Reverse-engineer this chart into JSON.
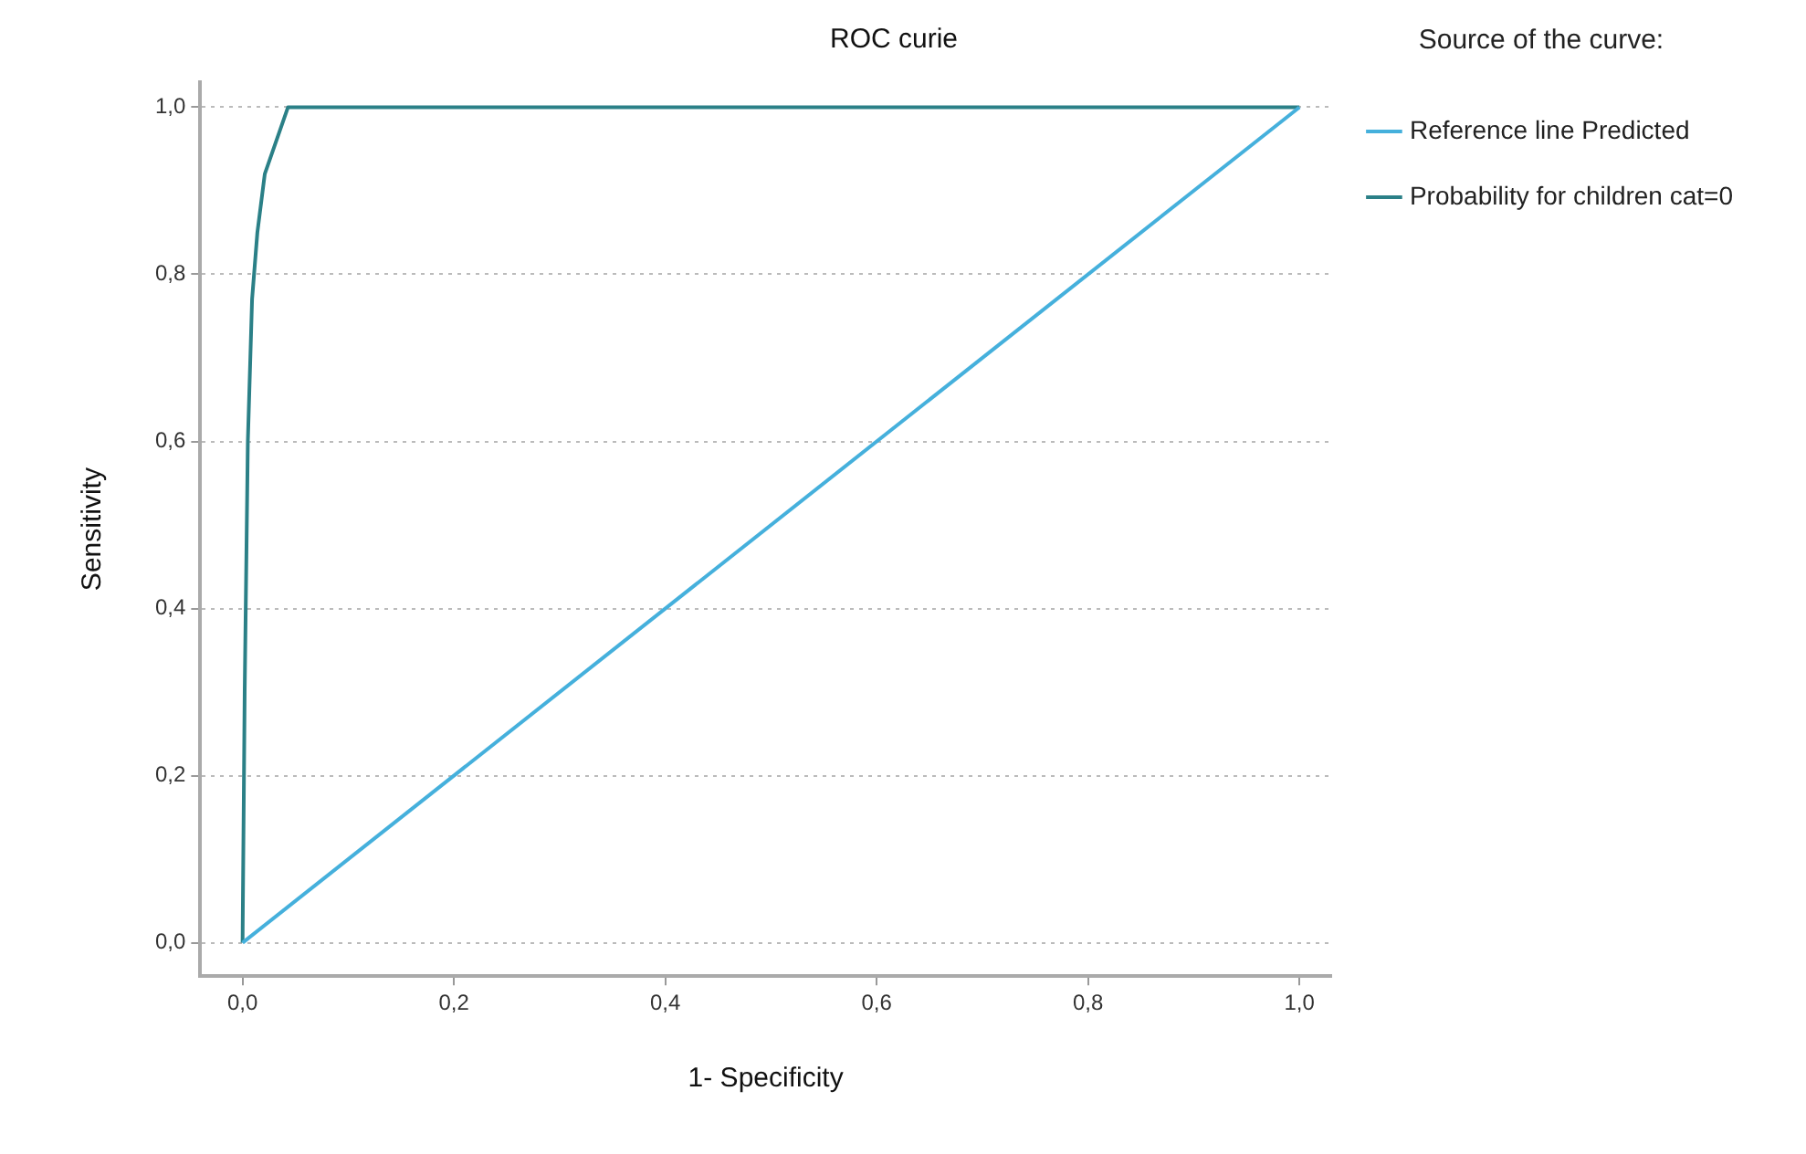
{
  "chart_data": {
    "type": "line",
    "title": "ROC curie",
    "xlabel": "1- Specificity",
    "ylabel": "Sensitivity",
    "legend_title": "Source of the curve:",
    "xlim": [
      -0.04,
      1.03
    ],
    "ylim": [
      -0.04,
      1.03
    ],
    "xticks": [
      {
        "value": 0,
        "label": "0,0"
      },
      {
        "value": 0.2,
        "label": "0,2"
      },
      {
        "value": 0.4,
        "label": "0,4"
      },
      {
        "value": 0.6,
        "label": "0,6"
      },
      {
        "value": 0.8,
        "label": "0,8"
      },
      {
        "value": 1,
        "label": "1,0"
      }
    ],
    "yticks": [
      {
        "value": 0,
        "label": "0,0"
      },
      {
        "value": 0.2,
        "label": "0,2"
      },
      {
        "value": 0.4,
        "label": "0,4"
      },
      {
        "value": 0.6,
        "label": "0,6"
      },
      {
        "value": 0.8,
        "label": "0,8"
      },
      {
        "value": 1,
        "label": "1,0"
      }
    ],
    "series": [
      {
        "name": "Reference line Predicted",
        "color": "#45b0dc",
        "x": [
          0,
          1
        ],
        "values": [
          0,
          1
        ]
      },
      {
        "name": "Probability for children cat=0",
        "color": "#2b8087",
        "x": [
          0,
          0.002,
          0.005,
          0.009,
          0.014,
          0.021,
          0.043,
          1
        ],
        "values": [
          0,
          0.3,
          0.6,
          0.77,
          0.85,
          0.92,
          1,
          1
        ]
      }
    ],
    "grid": "y",
    "legend": "right",
    "marker": "none",
    "line_style": "solid"
  }
}
